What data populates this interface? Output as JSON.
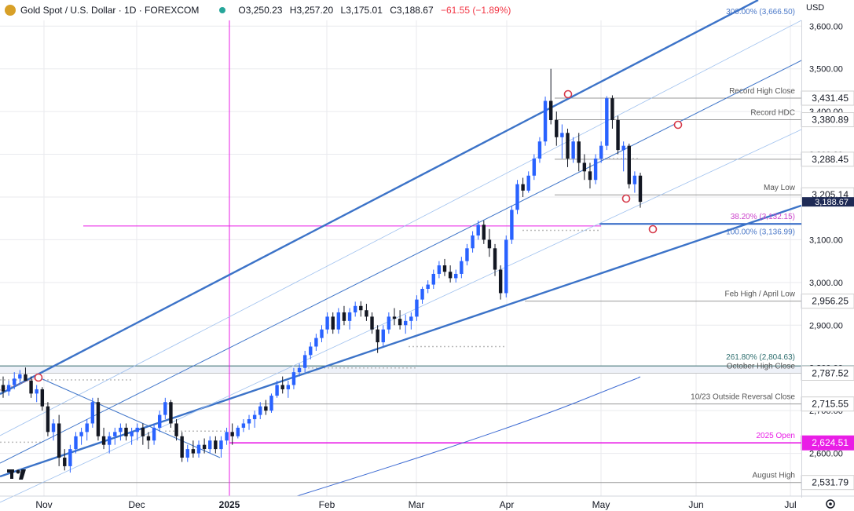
{
  "header": {
    "symbol": "Gold Spot / U.S. Dollar · 1D · FOREXCOM",
    "open": "O3,250.23",
    "high": "H3,257.20",
    "low": "L3,175.01",
    "close": "C3,188.67",
    "change": "−61.55 (−1.89%)",
    "currency": "USD"
  },
  "colors": {
    "up": "#2962ff",
    "down": "#131722",
    "channel": "#3c73c8",
    "magenta": "#e91ee6",
    "grid": "#e9eaee",
    "level": "#999999",
    "marker": "#d63a4a"
  },
  "chart_data": {
    "type": "candlestick",
    "symbol": "XAUUSD",
    "timeframe": "1D",
    "y_axis": {
      "ticks": [
        "3,600.00",
        "3,500.00",
        "3,400.00",
        "3,300.00",
        "3,200.00",
        "3,100.00",
        "3,000.00",
        "2,900.00",
        "2,800.00",
        "2,700.00",
        "2,600.00"
      ],
      "range": [
        2515,
        3705
      ]
    },
    "x_axis": {
      "ticks": [
        "Nov",
        "Dec",
        "2025",
        "Feb",
        "Mar",
        "Apr",
        "May",
        "Jun",
        "Jul"
      ]
    },
    "price_levels": [
      {
        "label": "Record High Close",
        "price_label": "3,431.45",
        "value": 3431.45
      },
      {
        "label": "Record HDC",
        "price_label": "3,380.89",
        "value": 3380.89
      },
      {
        "label": "",
        "price_label": "3,288.45",
        "value": 3288.45
      },
      {
        "label": "May Low",
        "price_label": "3,205.14",
        "value": 3205.14
      },
      {
        "label": "Feb High / April Low",
        "price_label": "2,956.25",
        "value": 2956.25
      },
      {
        "label": "October High Close",
        "price_label": "2,787.52",
        "value": 2787.52
      },
      {
        "label": "10/23 Outside Reversal Close",
        "price_label": "2,715.55",
        "value": 2715.55
      },
      {
        "label": "2025 Open",
        "price_label": "2,624.51",
        "value": 2624.51
      },
      {
        "label": "August High",
        "price_label": "2,531.79",
        "value": 2531.79
      }
    ],
    "fib_labels": [
      {
        "text": "300.00% (3,666.50)",
        "value": 3666.5
      },
      {
        "text": "38.20% (3,132.15)",
        "value": 3132.15
      },
      {
        "text": "100.00% (3,136.99)",
        "value": 3136.99
      },
      {
        "text": "261.80% (2,804.63)",
        "value": 2804.63
      }
    ],
    "last_price": {
      "label": "3,188.67",
      "value": 3188.67
    },
    "ohlc": [
      [
        2760,
        2780,
        2730,
        2745
      ],
      [
        2745,
        2770,
        2735,
        2760
      ],
      [
        2760,
        2790,
        2750,
        2775
      ],
      [
        2775,
        2795,
        2765,
        2785
      ],
      [
        2785,
        2801,
        2770,
        2770
      ],
      [
        2770,
        2780,
        2730,
        2740
      ],
      [
        2740,
        2760,
        2720,
        2750
      ],
      [
        2750,
        2755,
        2700,
        2710
      ],
      [
        2710,
        2720,
        2640,
        2650
      ],
      [
        2650,
        2680,
        2630,
        2670
      ],
      [
        2670,
        2690,
        2570,
        2590
      ],
      [
        2590,
        2610,
        2560,
        2570
      ],
      [
        2570,
        2620,
        2555,
        2610
      ],
      [
        2610,
        2650,
        2600,
        2640
      ],
      [
        2640,
        2660,
        2620,
        2650
      ],
      [
        2650,
        2680,
        2630,
        2670
      ],
      [
        2670,
        2730,
        2660,
        2720
      ],
      [
        2720,
        2730,
        2630,
        2640
      ],
      [
        2640,
        2660,
        2610,
        2620
      ],
      [
        2620,
        2650,
        2600,
        2640
      ],
      [
        2640,
        2660,
        2620,
        2650
      ],
      [
        2650,
        2670,
        2630,
        2660
      ],
      [
        2660,
        2670,
        2630,
        2640
      ],
      [
        2640,
        2660,
        2620,
        2650
      ],
      [
        2650,
        2670,
        2630,
        2660
      ],
      [
        2660,
        2670,
        2620,
        2640
      ],
      [
        2640,
        2650,
        2610,
        2630
      ],
      [
        2630,
        2670,
        2620,
        2660
      ],
      [
        2660,
        2700,
        2650,
        2690
      ],
      [
        2690,
        2730,
        2680,
        2720
      ],
      [
        2720,
        2725,
        2660,
        2670
      ],
      [
        2670,
        2680,
        2630,
        2640
      ],
      [
        2640,
        2650,
        2580,
        2590
      ],
      [
        2590,
        2620,
        2580,
        2610
      ],
      [
        2610,
        2630,
        2590,
        2600
      ],
      [
        2600,
        2630,
        2590,
        2620
      ],
      [
        2620,
        2635,
        2600,
        2610
      ],
      [
        2610,
        2640,
        2600,
        2630
      ],
      [
        2630,
        2640,
        2600,
        2610
      ],
      [
        2610,
        2640,
        2590,
        2630
      ],
      [
        2630,
        2660,
        2620,
        2650
      ],
      [
        2650,
        2670,
        2620,
        2640
      ],
      [
        2640,
        2665,
        2635,
        2660
      ],
      [
        2660,
        2680,
        2650,
        2670
      ],
      [
        2670,
        2690,
        2655,
        2680
      ],
      [
        2680,
        2700,
        2660,
        2690
      ],
      [
        2690,
        2720,
        2680,
        2710
      ],
      [
        2710,
        2725,
        2690,
        2700
      ],
      [
        2700,
        2740,
        2695,
        2735
      ],
      [
        2735,
        2770,
        2730,
        2760
      ],
      [
        2760,
        2780,
        2740,
        2750
      ],
      [
        2750,
        2770,
        2730,
        2760
      ],
      [
        2760,
        2800,
        2750,
        2790
      ],
      [
        2790,
        2810,
        2780,
        2800
      ],
      [
        2800,
        2840,
        2790,
        2830
      ],
      [
        2830,
        2860,
        2820,
        2850
      ],
      [
        2850,
        2880,
        2840,
        2870
      ],
      [
        2870,
        2900,
        2860,
        2890
      ],
      [
        2890,
        2930,
        2880,
        2920
      ],
      [
        2920,
        2930,
        2880,
        2890
      ],
      [
        2890,
        2940,
        2880,
        2930
      ],
      [
        2930,
        2945,
        2900,
        2910
      ],
      [
        2910,
        2940,
        2890,
        2930
      ],
      [
        2930,
        2955,
        2920,
        2945
      ],
      [
        2945,
        2956,
        2920,
        2935
      ],
      [
        2935,
        2950,
        2910,
        2920
      ],
      [
        2920,
        2930,
        2880,
        2890
      ],
      [
        2890,
        2900,
        2835,
        2860
      ],
      [
        2860,
        2900,
        2850,
        2890
      ],
      [
        2890,
        2930,
        2880,
        2920
      ],
      [
        2920,
        2940,
        2900,
        2915
      ],
      [
        2915,
        2935,
        2890,
        2900
      ],
      [
        2900,
        2925,
        2880,
        2910
      ],
      [
        2910,
        2930,
        2890,
        2920
      ],
      [
        2920,
        2970,
        2910,
        2960
      ],
      [
        2960,
        2990,
        2950,
        2985
      ],
      [
        2985,
        3005,
        2975,
        2995
      ],
      [
        2995,
        3030,
        2985,
        3020
      ],
      [
        3020,
        3050,
        3010,
        3040
      ],
      [
        3040,
        3055,
        3015,
        3025
      ],
      [
        3025,
        3040,
        3000,
        3010
      ],
      [
        3010,
        3030,
        3000,
        3020
      ],
      [
        3020,
        3060,
        3010,
        3050
      ],
      [
        3050,
        3090,
        3040,
        3080
      ],
      [
        3080,
        3120,
        3070,
        3110
      ],
      [
        3110,
        3145,
        3100,
        3135
      ],
      [
        3135,
        3145,
        3090,
        3100
      ],
      [
        3100,
        3125,
        3060,
        3080
      ],
      [
        3080,
        3090,
        3015,
        3030
      ],
      [
        3030,
        3040,
        2960,
        2975
      ],
      [
        2975,
        3110,
        2965,
        3100
      ],
      [
        3100,
        3180,
        3090,
        3170
      ],
      [
        3170,
        3240,
        3160,
        3230
      ],
      [
        3230,
        3245,
        3200,
        3215
      ],
      [
        3215,
        3260,
        3210,
        3250
      ],
      [
        3250,
        3300,
        3240,
        3290
      ],
      [
        3290,
        3340,
        3280,
        3330
      ],
      [
        3330,
        3435,
        3320,
        3425
      ],
      [
        3425,
        3500,
        3370,
        3380
      ],
      [
        3380,
        3400,
        3320,
        3340
      ],
      [
        3340,
        3370,
        3290,
        3350
      ],
      [
        3350,
        3360,
        3270,
        3290
      ],
      [
        3290,
        3340,
        3280,
        3330
      ],
      [
        3330,
        3350,
        3260,
        3280
      ],
      [
        3280,
        3300,
        3240,
        3260
      ],
      [
        3260,
        3280,
        3220,
        3240
      ],
      [
        3240,
        3300,
        3230,
        3290
      ],
      [
        3290,
        3330,
        3280,
        3320
      ],
      [
        3320,
        3436,
        3310,
        3431
      ],
      [
        3431,
        3438,
        3360,
        3380
      ],
      [
        3380,
        3390,
        3300,
        3310
      ],
      [
        3310,
        3330,
        3260,
        3320
      ],
      [
        3320,
        3325,
        3220,
        3230
      ],
      [
        3230,
        3260,
        3210,
        3250
      ],
      [
        3250,
        3257,
        3175,
        3188.67
      ]
    ]
  }
}
